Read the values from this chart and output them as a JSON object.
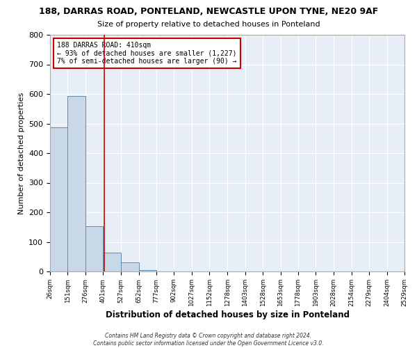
{
  "title": "188, DARRAS ROAD, PONTELAND, NEWCASTLE UPON TYNE, NE20 9AF",
  "subtitle": "Size of property relative to detached houses in Ponteland",
  "xlabel": "Distribution of detached houses by size in Ponteland",
  "ylabel": "Number of detached properties",
  "bar_color": "#c8d8e8",
  "bar_edge_color": "#5b8db0",
  "bg_color": "#e8eef5",
  "grid_color": "#ffffff",
  "vline_x": 410,
  "vline_color": "#cc0000",
  "annotation_line1": "188 DARRAS ROAD: 410sqm",
  "annotation_line2": "← 93% of detached houses are smaller (1,227)",
  "annotation_line3": "7% of semi-detached houses are larger (90) →",
  "annotation_box_color": "#cc0000",
  "footer1": "Contains HM Land Registry data © Crown copyright and database right 2024.",
  "footer2": "Contains public sector information licensed under the Open Government Licence v3.0.",
  "bin_edges": [
    26,
    151,
    276,
    401,
    527,
    652,
    777,
    902,
    1027,
    1152,
    1278,
    1403,
    1528,
    1653,
    1778,
    1903,
    2028,
    2154,
    2279,
    2404,
    2529
  ],
  "bin_heights": [
    487,
    594,
    152,
    63,
    30,
    5,
    0,
    0,
    0,
    0,
    0,
    0,
    0,
    0,
    0,
    0,
    0,
    0,
    0,
    0
  ],
  "ylim": [
    0,
    800
  ],
  "yticks": [
    0,
    100,
    200,
    300,
    400,
    500,
    600,
    700,
    800
  ]
}
